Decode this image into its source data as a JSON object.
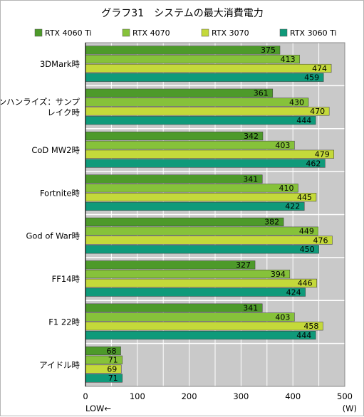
{
  "chart_data": {
    "type": "bar",
    "orientation": "horizontal",
    "title": "グラフ31　システムの最大消費電力",
    "categories": [
      "3DMark時",
      "モンハンライズ：サンブレイク時",
      "CoD MW2時",
      "Fortnite時",
      "God of War時",
      "FF14時",
      "F1 22時",
      "アイドル時"
    ],
    "category_lines": [
      [
        "3DMark時"
      ],
      [
        "モンハンライズ：サンプ",
        "レイク時"
      ],
      [
        "CoD MW2時"
      ],
      [
        "Fortnite時"
      ],
      [
        "God of War時"
      ],
      [
        "FF14時"
      ],
      [
        "F1 22時"
      ],
      [
        "アイドル時"
      ]
    ],
    "series": [
      {
        "name": "RTX 4060 Ti",
        "color": "#4d9a2a",
        "values": [
          375,
          361,
          342,
          341,
          382,
          327,
          341,
          68
        ]
      },
      {
        "name": "RTX 4070",
        "color": "#86c23a",
        "values": [
          413,
          430,
          403,
          410,
          449,
          394,
          403,
          71
        ]
      },
      {
        "name": "RTX 3070",
        "color": "#c4d93a",
        "values": [
          474,
          470,
          479,
          445,
          476,
          446,
          458,
          69
        ]
      },
      {
        "name": "RTX 3060 Ti",
        "color": "#0f9a7a",
        "values": [
          459,
          444,
          462,
          422,
          450,
          424,
          444,
          71
        ]
      }
    ],
    "xlim": [
      0,
      500
    ],
    "xticks": [
      "0",
      "100",
      "200",
      "300",
      "400",
      "500"
    ],
    "xunit": "(W)",
    "xnote": "LOW←",
    "grid": true,
    "legend_position": "top",
    "plot_background": "#c9c9c9"
  }
}
